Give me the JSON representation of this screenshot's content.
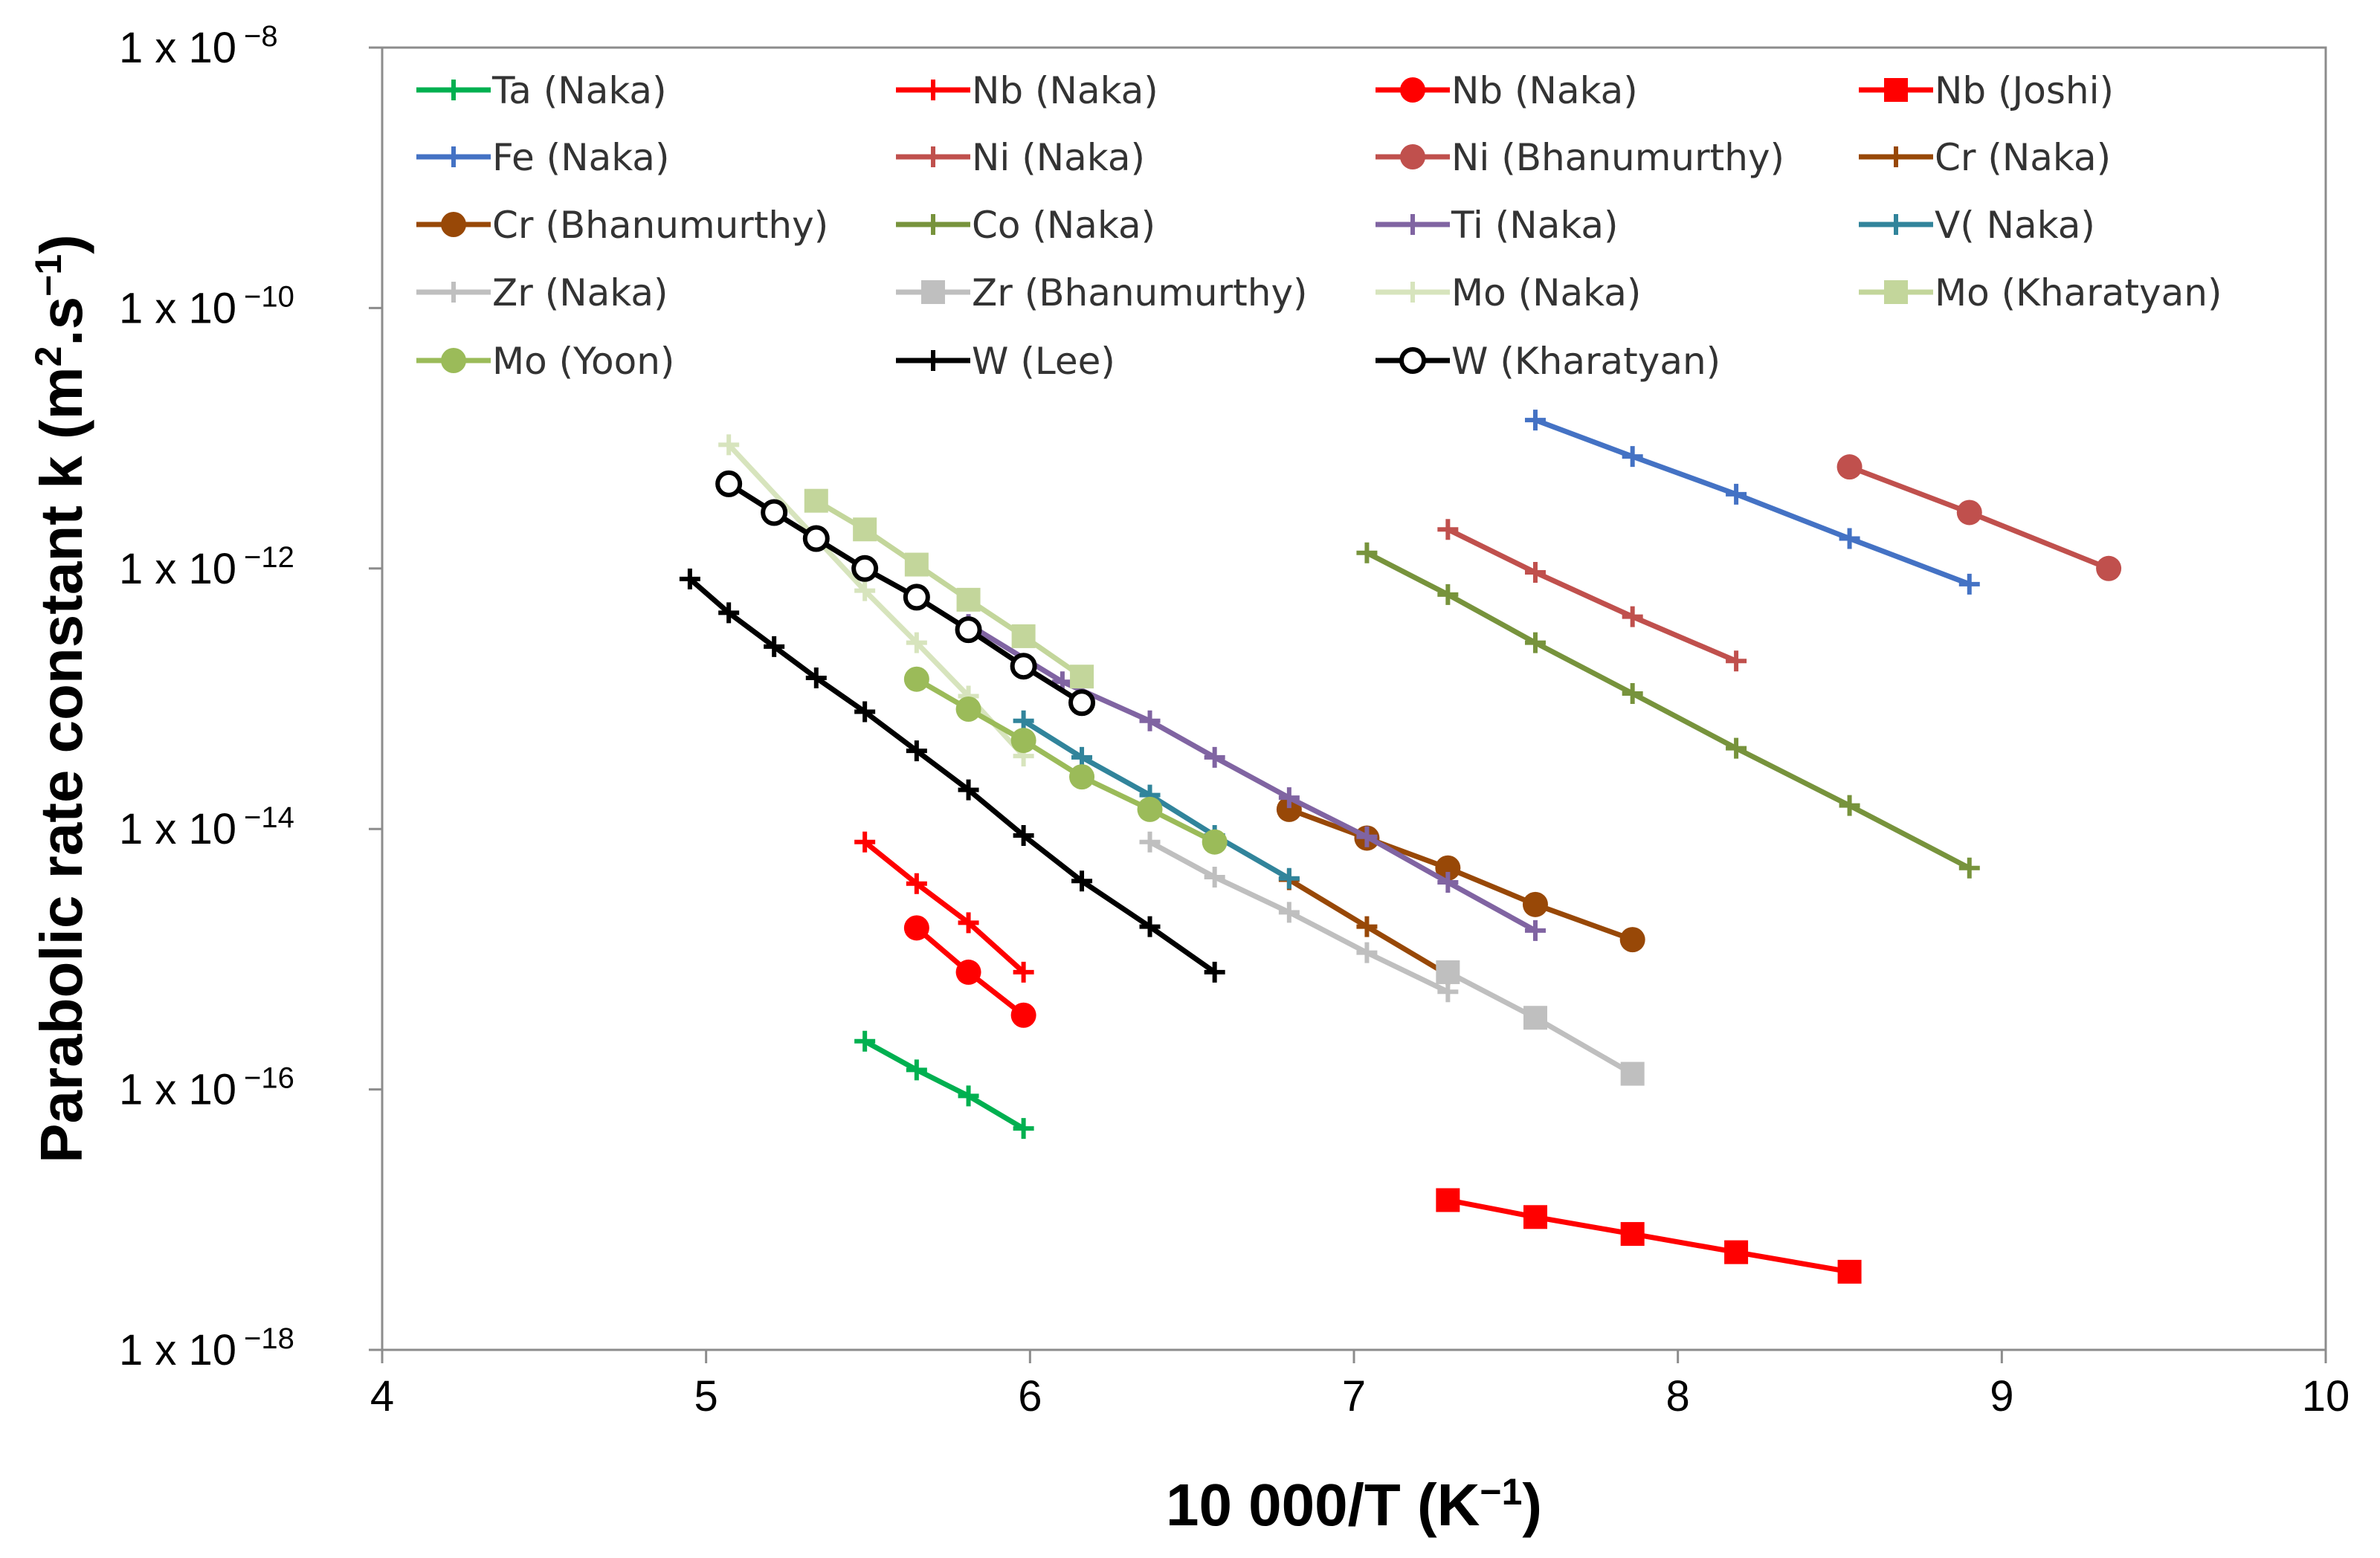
{
  "chart_data": {
    "type": "line",
    "title": "",
    "xlabel_main": "10 000/T (K",
    "xlabel_exp": "−1",
    "xlabel_end": ")",
    "ylabel_main": "Parabolic rate constant k (m",
    "ylabel_sq": "2",
    "ylabel_mid": ".s",
    "ylabel_exp": "−1",
    "ylabel_end": ")",
    "y_scale": "log",
    "xlim": [
      4,
      10
    ],
    "ylim_log10": [
      -18,
      -8
    ],
    "x_ticks": [
      {
        "value": 4,
        "label": "4"
      },
      {
        "value": 5,
        "label": "5"
      },
      {
        "value": 6,
        "label": "6"
      },
      {
        "value": 7,
        "label": "7"
      },
      {
        "value": 8,
        "label": "8"
      },
      {
        "value": 9,
        "label": "9"
      },
      {
        "value": 10,
        "label": "10"
      }
    ],
    "y_ticks": [
      {
        "value": -8,
        "base": "1 x 10",
        "exp": "−8"
      },
      {
        "value": -10,
        "base": "1 x 10",
        "exp": "−10"
      },
      {
        "value": -12,
        "base": "1 x 10",
        "exp": "−12"
      },
      {
        "value": -14,
        "base": "1 x 10",
        "exp": "−14"
      },
      {
        "value": -16,
        "base": "1 x 10",
        "exp": "−16"
      },
      {
        "value": -18,
        "base": "1 x 10",
        "exp": "−18"
      }
    ],
    "legend_location": "top",
    "series": [
      {
        "name": "Ta (Naka)",
        "color": "#00b050",
        "marker": "plus",
        "x": [
          5.49,
          5.65,
          5.81,
          5.98
        ],
        "log10_y": [
          -15.63,
          -15.85,
          -16.05,
          -16.3
        ]
      },
      {
        "name": "Nb (Naka)",
        "color": "#ff0000",
        "marker": "plus",
        "x": [
          5.49,
          5.65,
          5.81,
          5.98
        ],
        "log10_y": [
          -14.1,
          -14.42,
          -14.72,
          -15.1
        ]
      },
      {
        "name": "Nb (Naka)",
        "color": "#ff0000",
        "marker": "circle",
        "x": [
          5.65,
          5.81,
          5.98
        ],
        "log10_y": [
          -14.76,
          -15.1,
          -15.43
        ]
      },
      {
        "name": "Nb (Joshi)",
        "color": "#ff0000",
        "marker": "square",
        "x": [
          7.29,
          7.56,
          7.86,
          8.18,
          8.53
        ],
        "log10_y": [
          -16.85,
          -16.98,
          -17.11,
          -17.25,
          -17.4
        ]
      },
      {
        "name": "Fe (Naka)",
        "color": "#4472c4",
        "marker": "plus",
        "x": [
          7.56,
          7.86,
          8.18,
          8.53,
          8.9
        ],
        "log10_y": [
          -10.86,
          -11.14,
          -11.43,
          -11.77,
          -12.12
        ]
      },
      {
        "name": "Ni (Naka)",
        "color": "#c0504d",
        "marker": "plus",
        "x": [
          7.29,
          7.56,
          7.86,
          8.18
        ],
        "log10_y": [
          -11.7,
          -12.03,
          -12.37,
          -12.71
        ]
      },
      {
        "name": "Ni (Bhanumurthy)",
        "color": "#c0504d",
        "marker": "circle",
        "x": [
          8.53,
          8.9,
          9.33
        ],
        "log10_y": [
          -11.22,
          -11.57,
          -12.0
        ]
      },
      {
        "name": "Cr (Naka)",
        "color": "#984807",
        "marker": "plus",
        "x": [
          6.8,
          7.04,
          7.29
        ],
        "log10_y": [
          -14.39,
          -14.75,
          -15.12
        ]
      },
      {
        "name": "Cr (Bhanumurthy)",
        "color": "#984807",
        "marker": "circle",
        "x": [
          6.8,
          7.04,
          7.29,
          7.56,
          7.86
        ],
        "log10_y": [
          -13.85,
          -14.07,
          -14.3,
          -14.58,
          -14.85
        ]
      },
      {
        "name": "Co (Naka)",
        "color": "#77933c",
        "marker": "plus",
        "x": [
          7.04,
          7.29,
          7.56,
          7.86,
          8.18,
          8.53,
          8.9
        ],
        "log10_y": [
          -11.88,
          -12.2,
          -12.57,
          -12.96,
          -13.38,
          -13.82,
          -14.3
        ]
      },
      {
        "name": "Ti (Naka)",
        "color": "#8064a2",
        "marker": "plus",
        "x": [
          5.81,
          6.1,
          6.37,
          6.57,
          6.8,
          7.04,
          7.29,
          7.56
        ],
        "log10_y": [
          -12.43,
          -12.87,
          -13.17,
          -13.45,
          -13.76,
          -14.06,
          -14.41,
          -14.78
        ]
      },
      {
        "name": "V( Naka)",
        "color": "#31849b",
        "marker": "plus",
        "x": [
          5.98,
          6.16,
          6.37,
          6.57,
          6.8
        ],
        "log10_y": [
          -13.17,
          -13.45,
          -13.74,
          -14.05,
          -14.38
        ]
      },
      {
        "name": "Zr (Naka)",
        "color": "#bfbfbf",
        "marker": "plus",
        "x": [
          6.37,
          6.57,
          6.8,
          7.04,
          7.29
        ],
        "log10_y": [
          -14.1,
          -14.37,
          -14.64,
          -14.95,
          -15.25
        ]
      },
      {
        "name": "Zr (Bhanumurthy)",
        "color": "#bfbfbf",
        "marker": "square",
        "x": [
          7.29,
          7.56,
          7.86
        ],
        "log10_y": [
          -15.1,
          -15.45,
          -15.88
        ]
      },
      {
        "name": "Mo (Naka)",
        "color": "#d7e4bd",
        "marker": "plus",
        "x": [
          5.07,
          5.49,
          5.65,
          5.81,
          5.98
        ],
        "log10_y": [
          -11.05,
          -12.17,
          -12.57,
          -12.98,
          -13.44
        ]
      },
      {
        "name": "Mo (Kharatyan)",
        "color": "#c3d69b",
        "marker": "square",
        "x": [
          5.34,
          5.49,
          5.65,
          5.81,
          5.98,
          6.16
        ],
        "log10_y": [
          -11.48,
          -11.7,
          -11.97,
          -12.24,
          -12.52,
          -12.83
        ]
      },
      {
        "name": "Mo (Yoon)",
        "color": "#9bbb59",
        "marker": "circle",
        "x": [
          5.65,
          5.81,
          5.98,
          6.16,
          6.37,
          6.57
        ],
        "log10_y": [
          -12.85,
          -13.08,
          -13.32,
          -13.6,
          -13.85,
          -14.1
        ]
      },
      {
        "name": "W (Lee)",
        "color": "#000000",
        "marker": "plus",
        "x": [
          4.95,
          5.07,
          5.21,
          5.34,
          5.49,
          5.65,
          5.81,
          5.98,
          6.16,
          6.37,
          6.57
        ],
        "log10_y": [
          -12.08,
          -12.34,
          -12.6,
          -12.84,
          -13.1,
          -13.4,
          -13.7,
          -14.05,
          -14.4,
          -14.75,
          -15.1
        ]
      },
      {
        "name": "W (Kharatyan)",
        "color": "#000000",
        "marker": "open-circle",
        "x": [
          5.07,
          5.21,
          5.34,
          5.49,
          5.65,
          5.81,
          5.98,
          6.16
        ],
        "log10_y": [
          -11.35,
          -11.57,
          -11.77,
          -12.0,
          -12.22,
          -12.47,
          -12.75,
          -13.03
        ]
      }
    ]
  }
}
